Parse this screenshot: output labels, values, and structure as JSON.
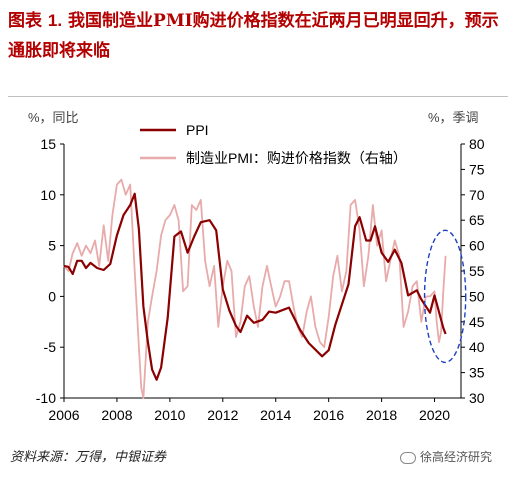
{
  "header": {
    "title_prefix": "图表",
    "title_number": "1.",
    "title_text": "我国制造业PMI购进价格指数在近两月已明显回升，预示通胀即将来临"
  },
  "footer": {
    "source": "资料来源：万得，中银证券",
    "watermark": "徐高经济研究"
  },
  "chart_data": {
    "type": "line",
    "left_axis": {
      "unit": "%，同比",
      "range": [
        -10,
        15
      ],
      "ticks": [
        "15",
        "10",
        "5",
        "0",
        "-5",
        "-10"
      ]
    },
    "right_axis": {
      "unit": "%，季调",
      "range": [
        30,
        80
      ],
      "ticks": [
        "80",
        "75",
        "70",
        "65",
        "60",
        "55",
        "50",
        "45",
        "40",
        "35",
        "30"
      ]
    },
    "x_axis": {
      "range": [
        2006,
        2021
      ],
      "ticks": [
        "2006",
        "2008",
        "2010",
        "2012",
        "2014",
        "2016",
        "2018",
        "2020"
      ]
    },
    "legend": {
      "position": "top-center"
    },
    "grid": false,
    "series": [
      {
        "name": "PPI",
        "axis": "left",
        "color": "#8b0000",
        "points": [
          [
            2006.0,
            3.0
          ],
          [
            2006.17,
            2.9
          ],
          [
            2006.33,
            2.2
          ],
          [
            2006.5,
            3.5
          ],
          [
            2006.67,
            3.5
          ],
          [
            2006.83,
            2.8
          ],
          [
            2007.0,
            3.3
          ],
          [
            2007.25,
            2.8
          ],
          [
            2007.5,
            2.6
          ],
          [
            2007.75,
            3.2
          ],
          [
            2008.0,
            6.0
          ],
          [
            2008.25,
            8.0
          ],
          [
            2008.5,
            9.0
          ],
          [
            2008.67,
            10.1
          ],
          [
            2008.83,
            6.6
          ],
          [
            2009.0,
            -1.0
          ],
          [
            2009.17,
            -4.5
          ],
          [
            2009.33,
            -7.2
          ],
          [
            2009.5,
            -8.2
          ],
          [
            2009.67,
            -7.0
          ],
          [
            2009.92,
            -2.1
          ],
          [
            2010.17,
            5.9
          ],
          [
            2010.42,
            6.4
          ],
          [
            2010.67,
            4.3
          ],
          [
            2010.92,
            5.9
          ],
          [
            2011.17,
            7.3
          ],
          [
            2011.5,
            7.5
          ],
          [
            2011.75,
            6.5
          ],
          [
            2012.0,
            0.7
          ],
          [
            2012.25,
            -1.4
          ],
          [
            2012.5,
            -2.9
          ],
          [
            2012.67,
            -3.5
          ],
          [
            2012.92,
            -1.9
          ],
          [
            2013.17,
            -2.6
          ],
          [
            2013.5,
            -2.3
          ],
          [
            2013.75,
            -1.5
          ],
          [
            2014.0,
            -1.6
          ],
          [
            2014.5,
            -1.1
          ],
          [
            2014.92,
            -3.3
          ],
          [
            2015.25,
            -4.6
          ],
          [
            2015.75,
            -5.9
          ],
          [
            2016.0,
            -5.3
          ],
          [
            2016.25,
            -2.8
          ],
          [
            2016.5,
            -0.8
          ],
          [
            2016.75,
            1.2
          ],
          [
            2017.0,
            6.9
          ],
          [
            2017.17,
            7.8
          ],
          [
            2017.42,
            5.5
          ],
          [
            2017.58,
            5.5
          ],
          [
            2017.75,
            6.9
          ],
          [
            2018.0,
            4.3
          ],
          [
            2018.25,
            3.4
          ],
          [
            2018.5,
            4.6
          ],
          [
            2018.75,
            3.3
          ],
          [
            2019.0,
            0.1
          ],
          [
            2019.33,
            0.6
          ],
          [
            2019.5,
            -0.3
          ],
          [
            2019.83,
            -1.6
          ],
          [
            2020.0,
            0.1
          ],
          [
            2020.33,
            -3.1
          ],
          [
            2020.42,
            -3.7
          ]
        ]
      },
      {
        "name": "制造业PMI：购进价格指数（右轴）",
        "axis": "right",
        "color": "#e8aaaa",
        "points": [
          [
            2006.0,
            56.0
          ],
          [
            2006.17,
            55.0
          ],
          [
            2006.33,
            58.5
          ],
          [
            2006.5,
            60.5
          ],
          [
            2006.67,
            58.0
          ],
          [
            2006.83,
            60.0
          ],
          [
            2007.0,
            58.5
          ],
          [
            2007.17,
            61.0
          ],
          [
            2007.33,
            56.0
          ],
          [
            2007.5,
            64.0
          ],
          [
            2007.67,
            57.0
          ],
          [
            2007.83,
            66.0
          ],
          [
            2008.0,
            72.0
          ],
          [
            2008.17,
            73.0
          ],
          [
            2008.33,
            70.0
          ],
          [
            2008.5,
            72.0
          ],
          [
            2008.67,
            55.0
          ],
          [
            2008.83,
            40.0
          ],
          [
            2008.92,
            32.0
          ],
          [
            2009.0,
            30.0
          ],
          [
            2009.17,
            45.0
          ],
          [
            2009.33,
            50.0
          ],
          [
            2009.5,
            55.0
          ],
          [
            2009.67,
            62.0
          ],
          [
            2009.83,
            65.0
          ],
          [
            2010.0,
            66.0
          ],
          [
            2010.17,
            68.0
          ],
          [
            2010.33,
            65.0
          ],
          [
            2010.5,
            51.0
          ],
          [
            2010.67,
            52.0
          ],
          [
            2010.83,
            68.0
          ],
          [
            2011.0,
            67.0
          ],
          [
            2011.17,
            69.0
          ],
          [
            2011.33,
            57.0
          ],
          [
            2011.5,
            52.0
          ],
          [
            2011.67,
            56.0
          ],
          [
            2011.83,
            44.0
          ],
          [
            2012.0,
            52.0
          ],
          [
            2012.17,
            57.0
          ],
          [
            2012.33,
            55.0
          ],
          [
            2012.5,
            42.0
          ],
          [
            2012.67,
            45.0
          ],
          [
            2012.83,
            52.0
          ],
          [
            2013.0,
            54.0
          ],
          [
            2013.17,
            48.0
          ],
          [
            2013.33,
            44.0
          ],
          [
            2013.5,
            52.0
          ],
          [
            2013.67,
            56.0
          ],
          [
            2013.83,
            52.0
          ],
          [
            2014.0,
            48.0
          ],
          [
            2014.17,
            50.0
          ],
          [
            2014.33,
            53.0
          ],
          [
            2014.5,
            53.0
          ],
          [
            2014.67,
            48.0
          ],
          [
            2014.83,
            44.0
          ],
          [
            2015.0,
            42.0
          ],
          [
            2015.17,
            47.0
          ],
          [
            2015.33,
            50.0
          ],
          [
            2015.5,
            44.0
          ],
          [
            2015.67,
            41.0
          ],
          [
            2015.83,
            40.0
          ],
          [
            2016.0,
            46.0
          ],
          [
            2016.17,
            54.0
          ],
          [
            2016.33,
            58.0
          ],
          [
            2016.5,
            51.0
          ],
          [
            2016.67,
            55.0
          ],
          [
            2016.83,
            68.0
          ],
          [
            2017.0,
            69.0
          ],
          [
            2017.17,
            63.0
          ],
          [
            2017.33,
            52.0
          ],
          [
            2017.5,
            58.0
          ],
          [
            2017.67,
            68.0
          ],
          [
            2017.83,
            60.0
          ],
          [
            2018.0,
            63.0
          ],
          [
            2018.17,
            53.0
          ],
          [
            2018.33,
            57.0
          ],
          [
            2018.5,
            61.0
          ],
          [
            2018.67,
            58.0
          ],
          [
            2018.83,
            44.0
          ],
          [
            2019.0,
            47.0
          ],
          [
            2019.17,
            52.0
          ],
          [
            2019.33,
            53.0
          ],
          [
            2019.5,
            45.0
          ],
          [
            2019.67,
            50.0
          ],
          [
            2019.83,
            50.0
          ],
          [
            2020.0,
            51.0
          ],
          [
            2020.08,
            45.0
          ],
          [
            2020.17,
            41.0
          ],
          [
            2020.25,
            43.0
          ],
          [
            2020.33,
            51.0
          ],
          [
            2020.42,
            58.0
          ]
        ]
      }
    ],
    "annotation": {
      "shape": "dashed-ellipse",
      "color": "#1f3fbf",
      "x_range": [
        2020.0,
        2020.8
      ]
    }
  }
}
